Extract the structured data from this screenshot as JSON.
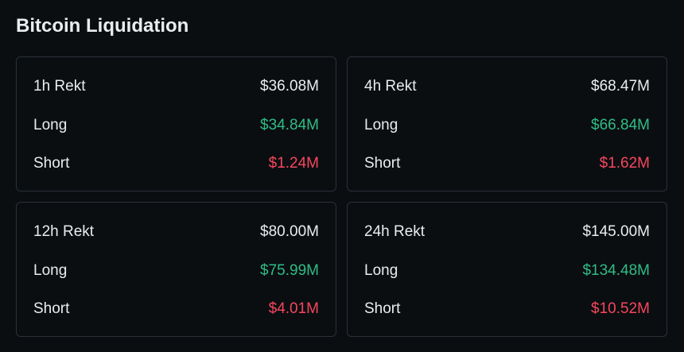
{
  "title": "Bitcoin Liquidation",
  "colors": {
    "long": "#2ebd85",
    "short": "#f6465d",
    "background": "#0b0e11",
    "border": "#2b3139"
  },
  "cards": [
    {
      "total_label": "1h Rekt",
      "total": "$36.08M",
      "long_label": "Long",
      "long": "$34.84M",
      "short_label": "Short",
      "short": "$1.24M"
    },
    {
      "total_label": "4h Rekt",
      "total": "$68.47M",
      "long_label": "Long",
      "long": "$66.84M",
      "short_label": "Short",
      "short": "$1.62M"
    },
    {
      "total_label": "12h Rekt",
      "total": "$80.00M",
      "long_label": "Long",
      "long": "$75.99M",
      "short_label": "Short",
      "short": "$4.01M"
    },
    {
      "total_label": "24h Rekt",
      "total": "$145.00M",
      "long_label": "Long",
      "long": "$134.48M",
      "short_label": "Short",
      "short": "$10.52M"
    }
  ]
}
